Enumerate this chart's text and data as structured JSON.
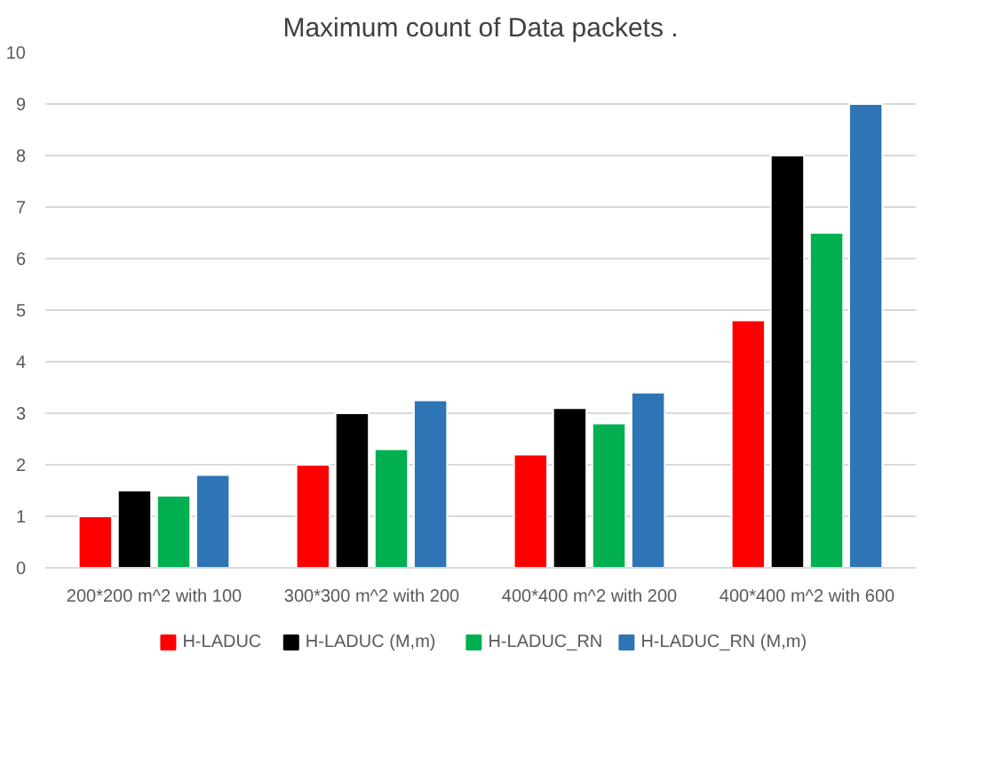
{
  "chart_data": {
    "type": "bar",
    "title": "Maximum count of Data packets .",
    "categories": [
      "200*200 m^2 with 100",
      "300*300 m^2 with 200",
      "400*400 m^2 with 200",
      "400*400 m^2 with 600"
    ],
    "series": [
      {
        "name": "H-LADUC",
        "color": "#ff0000",
        "values": [
          1,
          2,
          2.2,
          4.8
        ]
      },
      {
        "name": "H-LADUC (M,m)",
        "color": "#000000",
        "values": [
          1.5,
          3,
          3.1,
          8
        ]
      },
      {
        "name": "H-LADUC_RN",
        "color": "#00b050",
        "values": [
          1.4,
          2.3,
          2.8,
          6.5
        ]
      },
      {
        "name": "H-LADUC_RN (M,m)",
        "color": "#2e75b6",
        "values": [
          1.8,
          3.25,
          3.4,
          9
        ]
      }
    ],
    "ylim": [
      0,
      10
    ],
    "yticks": [
      0,
      1,
      2,
      3,
      4,
      5,
      6,
      7,
      8,
      9,
      10
    ],
    "grid": "y",
    "legend": "bottom"
  }
}
